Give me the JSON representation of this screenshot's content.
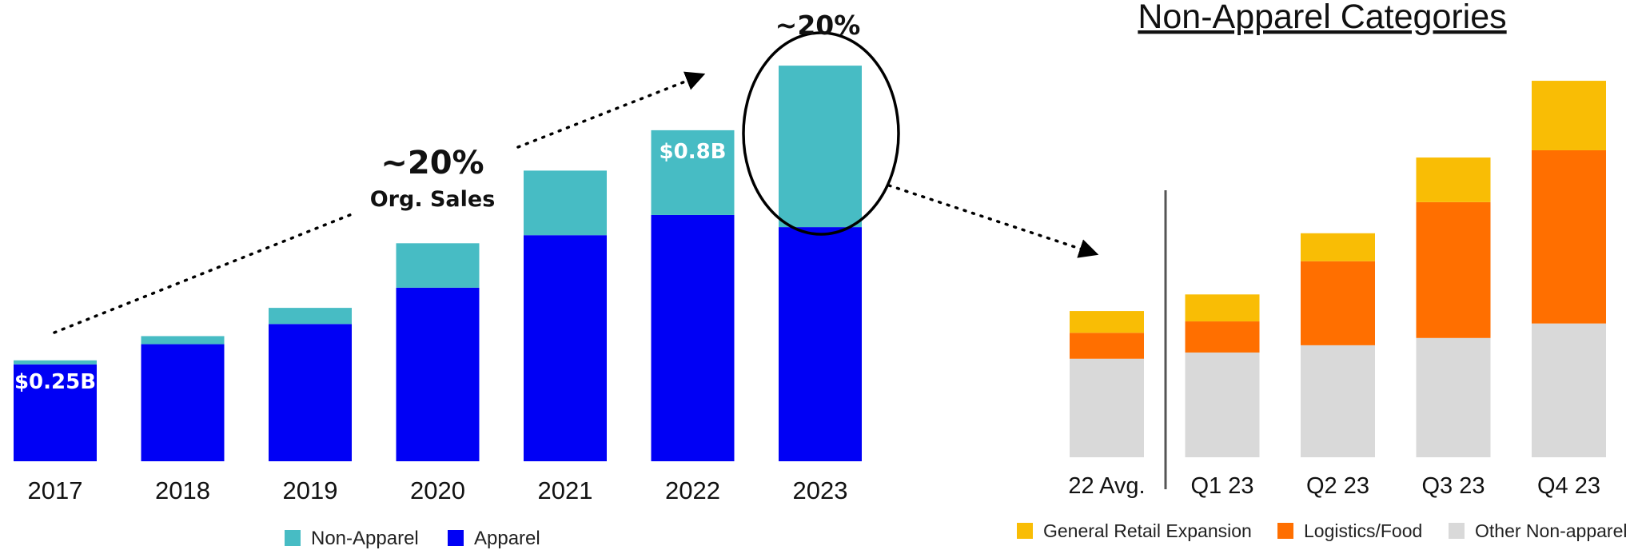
{
  "colors": {
    "apparel": "#0000F5",
    "non_apparel": "#47BCC4",
    "general_retail": "#F9BD05",
    "logistics_food": "#FF6F00",
    "other_non_apparel": "#D9D9D9"
  },
  "annotations": {
    "growth_pct": "~20%",
    "growth_sub": "Org. Sales",
    "top_pct": "~20%"
  },
  "chart_data": [
    {
      "type": "bar",
      "stacked": true,
      "title": "",
      "categories": [
        "2017",
        "2018",
        "2019",
        "2020",
        "2021",
        "2022",
        "2023"
      ],
      "series": [
        {
          "name": "Apparel",
          "values": [
            0.24,
            0.29,
            0.34,
            0.43,
            0.56,
            0.61,
            0.58
          ]
        },
        {
          "name": "Non-Apparel",
          "values": [
            0.01,
            0.02,
            0.04,
            0.11,
            0.16,
            0.21,
            0.4
          ]
        }
      ],
      "data_labels": [
        {
          "category": "2017",
          "text": "$0.25B"
        },
        {
          "category": "2022",
          "text": "$0.8B"
        }
      ],
      "ylim": [
        0,
        1.0
      ],
      "grid": false,
      "legend": "bottom"
    },
    {
      "type": "bar",
      "stacked": true,
      "title": "Non-Apparel Categories",
      "categories": [
        "22 Avg.",
        "Q1 23",
        "Q2 23",
        "Q3 23",
        "Q4 23"
      ],
      "series": [
        {
          "name": "Other Non-apparel",
          "values": [
            95,
            101,
            108,
            115,
            129
          ]
        },
        {
          "name": "Logistics/Food",
          "values": [
            25,
            30,
            81,
            131,
            167
          ]
        },
        {
          "name": "General Retail Expansion",
          "values": [
            21,
            26,
            27,
            43,
            67
          ]
        }
      ],
      "ylim": [
        0,
        380
      ],
      "grid": false,
      "legend": "bottom"
    }
  ]
}
